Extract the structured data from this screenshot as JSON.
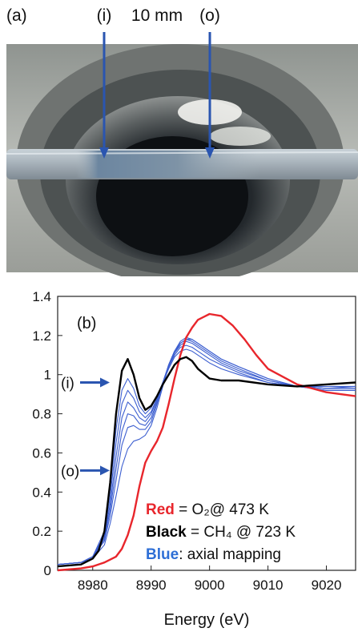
{
  "panel_a": {
    "label": "(a)",
    "marker_inner": "(i)",
    "marker_outer": "(o)",
    "scale_text": "10 mm",
    "colors": {
      "arrow": "#2a55b0"
    }
  },
  "chart_data": {
    "type": "line",
    "panel_label": "(b)",
    "xlabel": "Energy (eV)",
    "ylabel": "",
    "xlim": [
      8974,
      9025
    ],
    "ylim": [
      0,
      1.4
    ],
    "x_ticks": [
      "8980",
      "8990",
      "9000",
      "9010",
      "9020"
    ],
    "x_tick_values": [
      8980,
      8990,
      9000,
      9010,
      9020
    ],
    "y_ticks": [
      "0",
      "0.2",
      "0.4",
      "0.6",
      "0.8",
      "1",
      "1.2",
      "1.4"
    ],
    "y_tick_values": [
      0,
      0.2,
      0.4,
      0.6,
      0.8,
      1.0,
      1.2,
      1.4
    ],
    "grid": false,
    "annotations": [
      {
        "text": "(i)",
        "y": 0.96
      },
      {
        "text": "(o)",
        "y": 0.51
      }
    ],
    "legend": [
      {
        "key": "Red",
        "desc": " = O₂@ 473 K",
        "color": "#e8262c"
      },
      {
        "key": "Black",
        "desc": " = CH₄ @ 723 K",
        "color": "#000000"
      },
      {
        "key": "Blue",
        "desc": ": axial mapping",
        "color": "#2e6fd6"
      }
    ],
    "series": [
      {
        "color": "#e8262c",
        "x": [
          8974,
          8978,
          8980,
          8982,
          8984,
          8985,
          8986,
          8987,
          8988,
          8989,
          8990,
          8991,
          8992,
          8993,
          8994,
          8995,
          8996,
          8997,
          8998,
          9000,
          9002,
          9004,
          9006,
          9008,
          9010,
          9015,
          9020,
          9025
        ],
        "y": [
          0.0,
          0.01,
          0.02,
          0.04,
          0.07,
          0.11,
          0.18,
          0.28,
          0.43,
          0.55,
          0.61,
          0.66,
          0.73,
          0.85,
          0.98,
          1.1,
          1.19,
          1.24,
          1.28,
          1.31,
          1.3,
          1.25,
          1.18,
          1.1,
          1.03,
          0.95,
          0.91,
          0.89
        ]
      },
      {
        "color": "#000000",
        "x": [
          8974,
          8978,
          8980,
          8981,
          8982,
          8983,
          8984,
          8985,
          8986,
          8987,
          8988,
          8989,
          8990,
          8991,
          8992,
          8993,
          8994,
          8995,
          8996,
          8997,
          8998,
          9000,
          9002,
          9005,
          9010,
          9015,
          9020,
          9025
        ],
        "y": [
          0.02,
          0.03,
          0.06,
          0.1,
          0.2,
          0.45,
          0.8,
          1.02,
          1.08,
          1.0,
          0.88,
          0.82,
          0.84,
          0.89,
          0.95,
          1.0,
          1.05,
          1.08,
          1.09,
          1.07,
          1.03,
          0.98,
          0.97,
          0.97,
          0.95,
          0.94,
          0.95,
          0.96
        ]
      },
      {
        "color": "#3d5fd0",
        "x": [
          8974,
          8978,
          8980,
          8982,
          8983,
          8984,
          8985,
          8986,
          8987,
          8988,
          8989,
          8990,
          8991,
          8992,
          8993,
          8994,
          8995,
          8996,
          8997,
          8998,
          9000,
          9002,
          9005,
          9010,
          9015,
          9020,
          9025
        ],
        "y": [
          0.03,
          0.04,
          0.07,
          0.2,
          0.42,
          0.72,
          0.92,
          0.98,
          0.93,
          0.84,
          0.8,
          0.83,
          0.89,
          0.96,
          1.03,
          1.09,
          1.12,
          1.13,
          1.12,
          1.1,
          1.06,
          1.03,
          1.0,
          0.96,
          0.94,
          0.94,
          0.94
        ]
      },
      {
        "color": "#3d5fd0",
        "x": [
          8974,
          8978,
          8980,
          8982,
          8983,
          8984,
          8985,
          8986,
          8987,
          8988,
          8989,
          8990,
          8991,
          8992,
          8993,
          8994,
          8995,
          8996,
          8997,
          8998,
          9000,
          9002,
          9005,
          9010,
          9015,
          9020,
          9025
        ],
        "y": [
          0.03,
          0.04,
          0.07,
          0.18,
          0.38,
          0.65,
          0.85,
          0.92,
          0.88,
          0.81,
          0.78,
          0.81,
          0.88,
          0.96,
          1.04,
          1.1,
          1.14,
          1.15,
          1.14,
          1.12,
          1.08,
          1.05,
          1.01,
          0.96,
          0.94,
          0.93,
          0.94
        ]
      },
      {
        "color": "#3d5fd0",
        "x": [
          8974,
          8978,
          8980,
          8982,
          8983,
          8984,
          8985,
          8986,
          8987,
          8988,
          8989,
          8990,
          8991,
          8992,
          8993,
          8994,
          8995,
          8996,
          8997,
          8998,
          9000,
          9002,
          9005,
          9010,
          9015,
          9020,
          9025
        ],
        "y": [
          0.03,
          0.04,
          0.07,
          0.17,
          0.34,
          0.58,
          0.78,
          0.86,
          0.83,
          0.78,
          0.76,
          0.8,
          0.87,
          0.96,
          1.05,
          1.11,
          1.15,
          1.17,
          1.16,
          1.14,
          1.1,
          1.06,
          1.02,
          0.97,
          0.94,
          0.93,
          0.93
        ]
      },
      {
        "color": "#3d5fd0",
        "x": [
          8974,
          8978,
          8980,
          8982,
          8983,
          8984,
          8985,
          8986,
          8987,
          8988,
          8989,
          8990,
          8991,
          8992,
          8993,
          8994,
          8995,
          8996,
          8997,
          8998,
          9000,
          9002,
          9005,
          9010,
          9015,
          9020,
          9025
        ],
        "y": [
          0.03,
          0.04,
          0.07,
          0.16,
          0.31,
          0.52,
          0.71,
          0.8,
          0.79,
          0.75,
          0.74,
          0.78,
          0.86,
          0.96,
          1.05,
          1.12,
          1.16,
          1.18,
          1.17,
          1.15,
          1.11,
          1.07,
          1.03,
          0.97,
          0.94,
          0.93,
          0.93
        ]
      },
      {
        "color": "#3d5fd0",
        "x": [
          8974,
          8978,
          8980,
          8982,
          8983,
          8984,
          8985,
          8986,
          8987,
          8988,
          8989,
          8990,
          8991,
          8992,
          8993,
          8994,
          8995,
          8996,
          8997,
          8998,
          9000,
          9002,
          9005,
          9010,
          9015,
          9020,
          9025
        ],
        "y": [
          0.03,
          0.04,
          0.07,
          0.15,
          0.28,
          0.46,
          0.64,
          0.73,
          0.74,
          0.72,
          0.72,
          0.76,
          0.85,
          0.95,
          1.05,
          1.12,
          1.17,
          1.19,
          1.18,
          1.16,
          1.12,
          1.08,
          1.04,
          0.98,
          0.94,
          0.92,
          0.92
        ]
      },
      {
        "color": "#3d5fd0",
        "x": [
          8974,
          8978,
          8980,
          8982,
          8983,
          8984,
          8985,
          8986,
          8987,
          8988,
          8989,
          8990,
          8991,
          8992,
          8993,
          8994,
          8995,
          8996,
          8997,
          8998,
          9000,
          9002,
          9005,
          9010,
          9015,
          9020,
          9025
        ],
        "y": [
          0.03,
          0.04,
          0.06,
          0.13,
          0.24,
          0.38,
          0.53,
          0.62,
          0.66,
          0.67,
          0.69,
          0.74,
          0.83,
          0.94,
          1.04,
          1.11,
          1.16,
          1.18,
          1.18,
          1.16,
          1.12,
          1.08,
          1.04,
          0.98,
          0.94,
          0.92,
          0.92
        ]
      }
    ]
  }
}
